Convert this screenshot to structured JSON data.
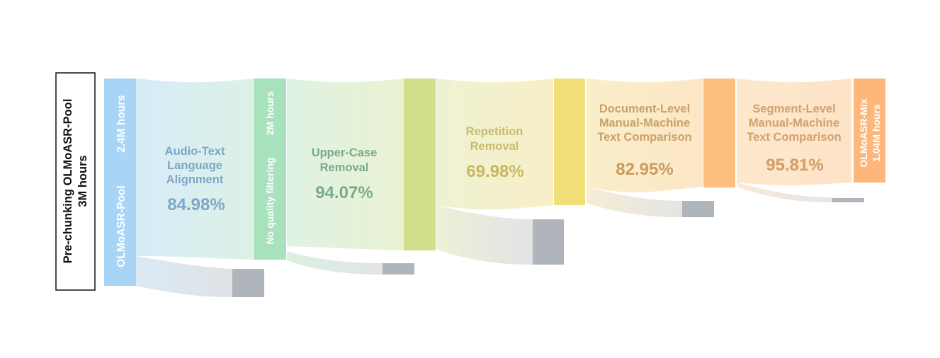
{
  "source_box": {
    "line1": "Pre-chunking OLMoASR-Pool",
    "line2": "3M hours"
  },
  "nodes": [
    {
      "id": "pool",
      "name": "OLMoASR-Pool",
      "amount": "2.4M hours",
      "color": "#a8d4f6"
    },
    {
      "id": "noqf",
      "name": "No quality filtering",
      "amount": "2M hours",
      "color": "#a8e2bd"
    },
    {
      "id": "n3",
      "name": "",
      "amount": "",
      "color": "#d2df8a"
    },
    {
      "id": "n4",
      "name": "",
      "amount": "",
      "color": "#f1e07a"
    },
    {
      "id": "n5",
      "name": "",
      "amount": "",
      "color": "#fdbf7f"
    },
    {
      "id": "mix",
      "name": "OLMoASR-Mix",
      "amount": "1.04M hours",
      "color": "#fdb77a"
    }
  ],
  "stages": [
    {
      "lines": [
        "Audio-Text",
        "Language",
        "Alignment"
      ],
      "pct": "84.98%",
      "label_color": "#7ea6c8",
      "pct_color": "#7ea6c8",
      "flow_color": "#d4ebf6"
    },
    {
      "lines": [
        "Upper-Case",
        "Removal"
      ],
      "pct": "94.07%",
      "label_color": "#78ab8a",
      "pct_color": "#78ab8a",
      "flow_color": "#e2f1da"
    },
    {
      "lines": [
        "Repetition",
        "Removal"
      ],
      "pct": "69.98%",
      "label_color": "#c9bb6e",
      "pct_color": "#c6b862",
      "flow_color": "#f3f1cd"
    },
    {
      "lines": [
        "Document-Level",
        "Manual-Machine",
        "Text Comparison"
      ],
      "pct": "82.95%",
      "label_color": "#caa16a",
      "pct_color": "#c89c60",
      "flow_color": "#fbecc8"
    },
    {
      "lines": [
        "Segment-Level",
        "Manual-Machine",
        "Text Comparison"
      ],
      "pct": "95.81%",
      "label_color": "#d3a06e",
      "pct_color": "#d49c66",
      "flow_color": "#fde7cc"
    }
  ],
  "removed_color": "#b0b4bb"
}
